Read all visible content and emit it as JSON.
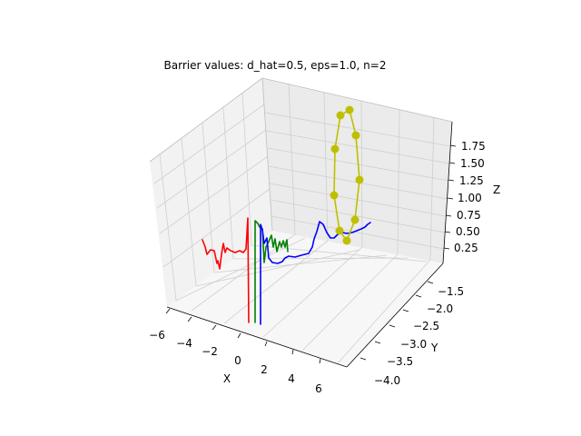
{
  "chart_data": {
    "type": "line3d",
    "title": "Barrier values: d_hat=0.5, eps=1.0, n=2",
    "xlabel": "X",
    "ylabel": "Y",
    "zlabel": "Z",
    "xticks": [
      "−6",
      "−4",
      "−2",
      "0",
      "2",
      "4",
      "6"
    ],
    "yticks": [
      "−1.5",
      "−2.0",
      "−2.5",
      "−3.0",
      "−3.5",
      "−4.0"
    ],
    "zticks": [
      "0.25",
      "0.50",
      "0.75",
      "1.00",
      "1.25",
      "1.50",
      "1.75"
    ],
    "grid": true,
    "colors": {
      "red": "#ff0000",
      "green": "#008000",
      "blue": "#0000ff",
      "yellow": "#bfbf00",
      "pane_left": "#f2f2f2",
      "pane_right": "#ebebeb",
      "pane_floor": "#f7f7f7"
    },
    "series": [
      {
        "color": "red",
        "marker": "none"
      },
      {
        "color": "green",
        "marker": "none"
      },
      {
        "color": "blue",
        "marker": "none"
      },
      {
        "color": "yellow",
        "marker": "circle"
      }
    ]
  }
}
